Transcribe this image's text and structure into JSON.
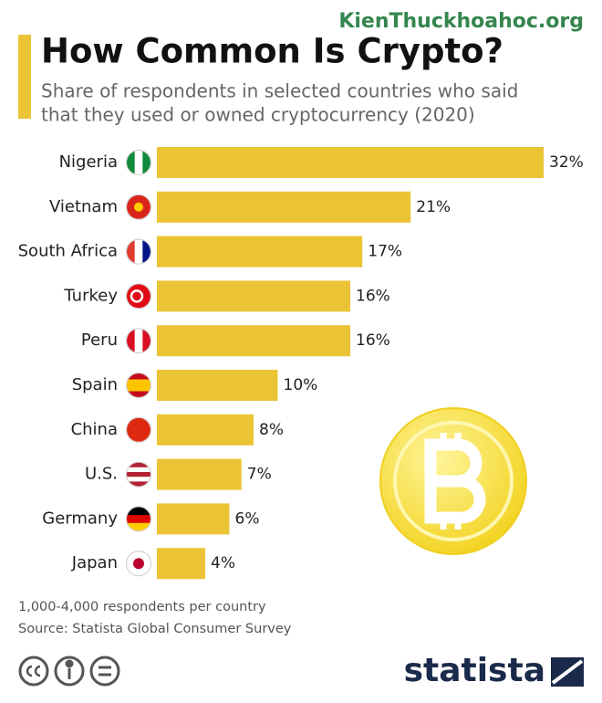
{
  "chart_data": {
    "type": "bar",
    "orientation": "horizontal",
    "title": "How Common Is Crypto?",
    "subtitle": [
      "Share of respondents in selected countries who said",
      "that they used or owned cryptocurrency (2020)"
    ],
    "categories": [
      "Nigeria",
      "Vietnam",
      "South Africa",
      "Turkey",
      "Peru",
      "Spain",
      "China",
      "U.S.",
      "Germany",
      "Japan"
    ],
    "values": [
      32,
      21,
      17,
      16,
      16,
      10,
      8,
      7,
      6,
      4
    ],
    "value_labels": [
      "32%",
      "21%",
      "17%",
      "16%",
      "16%",
      "10%",
      "8%",
      "7%",
      "6%",
      "4%"
    ],
    "color": "#ebc435",
    "notes": [
      "1,000-4,000 respondents per country",
      "Source: Statista Global Consumer Survey"
    ],
    "logo": "statista",
    "watermark": "KienThuckhoahoc.org"
  }
}
